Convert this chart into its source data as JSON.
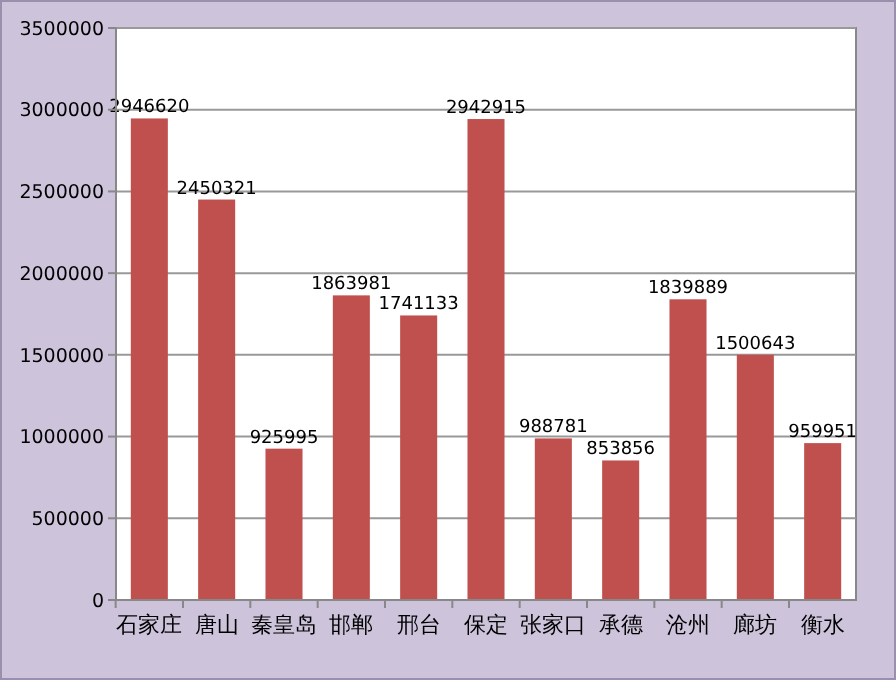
{
  "chart_data": {
    "type": "bar",
    "categories": [
      "石家庄",
      "唐山",
      "秦皇岛",
      "邯郸",
      "邢台",
      "保定",
      "张家口",
      "承德",
      "沧州",
      "廊坊",
      "衡水"
    ],
    "values": [
      2946620,
      2450321,
      925995,
      1863981,
      1741133,
      2942915,
      988781,
      853856,
      1839889,
      1500643,
      959951
    ],
    "color": "#c0504d",
    "ylim": [
      0,
      3500000
    ],
    "yticks": [
      0,
      500000,
      1000000,
      1500000,
      2000000,
      2500000,
      3000000,
      3500000
    ],
    "grid": "y",
    "data_labels": true
  }
}
